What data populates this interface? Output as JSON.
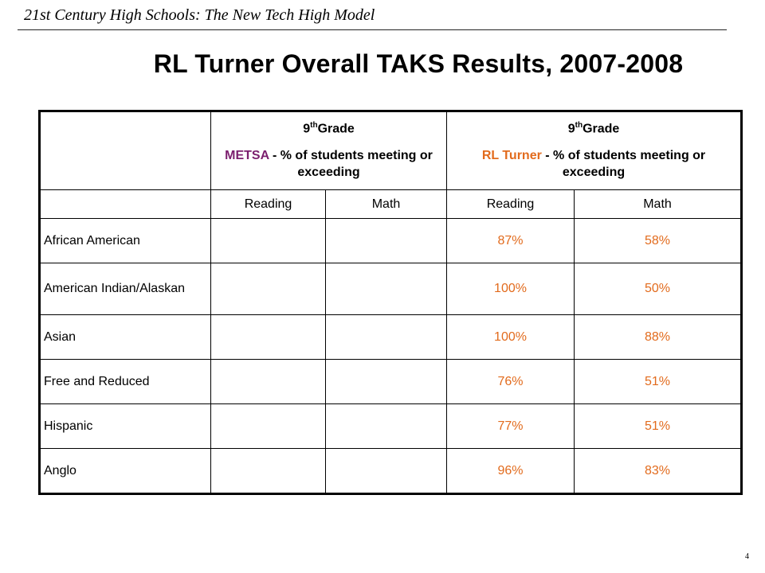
{
  "header": {
    "series_title": "21st Century High Schools: The New Tech High Model"
  },
  "slide": {
    "title": "RL Turner Overall TAKS Results, 2007-2008",
    "page_number": "4"
  },
  "table": {
    "groups": [
      {
        "grade_num": "9",
        "grade_sup": "th",
        "grade_word": "Grade",
        "school": "METSA",
        "desc_rest": " - % of students meeting or exceeding"
      },
      {
        "grade_num": "9",
        "grade_sup": "th",
        "grade_word": "Grade",
        "school": "RL Turner",
        "desc_rest": " - % of students meeting or exceeding"
      }
    ],
    "subheaders": [
      "Reading",
      "Math",
      "Reading",
      "Math"
    ],
    "rows": [
      {
        "label": "African American",
        "metsa_reading": "",
        "metsa_math": "",
        "rl_reading": "87%",
        "rl_math": "58%"
      },
      {
        "label": "American Indian/Alaskan",
        "metsa_reading": "",
        "metsa_math": "",
        "rl_reading": "100%",
        "rl_math": "50%"
      },
      {
        "label": "Asian",
        "metsa_reading": "",
        "metsa_math": "",
        "rl_reading": "100%",
        "rl_math": "88%"
      },
      {
        "label": "Free and Reduced",
        "metsa_reading": "",
        "metsa_math": "",
        "rl_reading": "76%",
        "rl_math": "51%"
      },
      {
        "label": "Hispanic",
        "metsa_reading": "",
        "metsa_math": "",
        "rl_reading": "77%",
        "rl_math": "51%"
      },
      {
        "label": "Anglo",
        "metsa_reading": "",
        "metsa_math": "",
        "rl_reading": "96%",
        "rl_math": "83%"
      }
    ]
  },
  "colors": {
    "metsa": "#7b1f6e",
    "rl_turner": "#e26b1d",
    "text": "#000000"
  }
}
